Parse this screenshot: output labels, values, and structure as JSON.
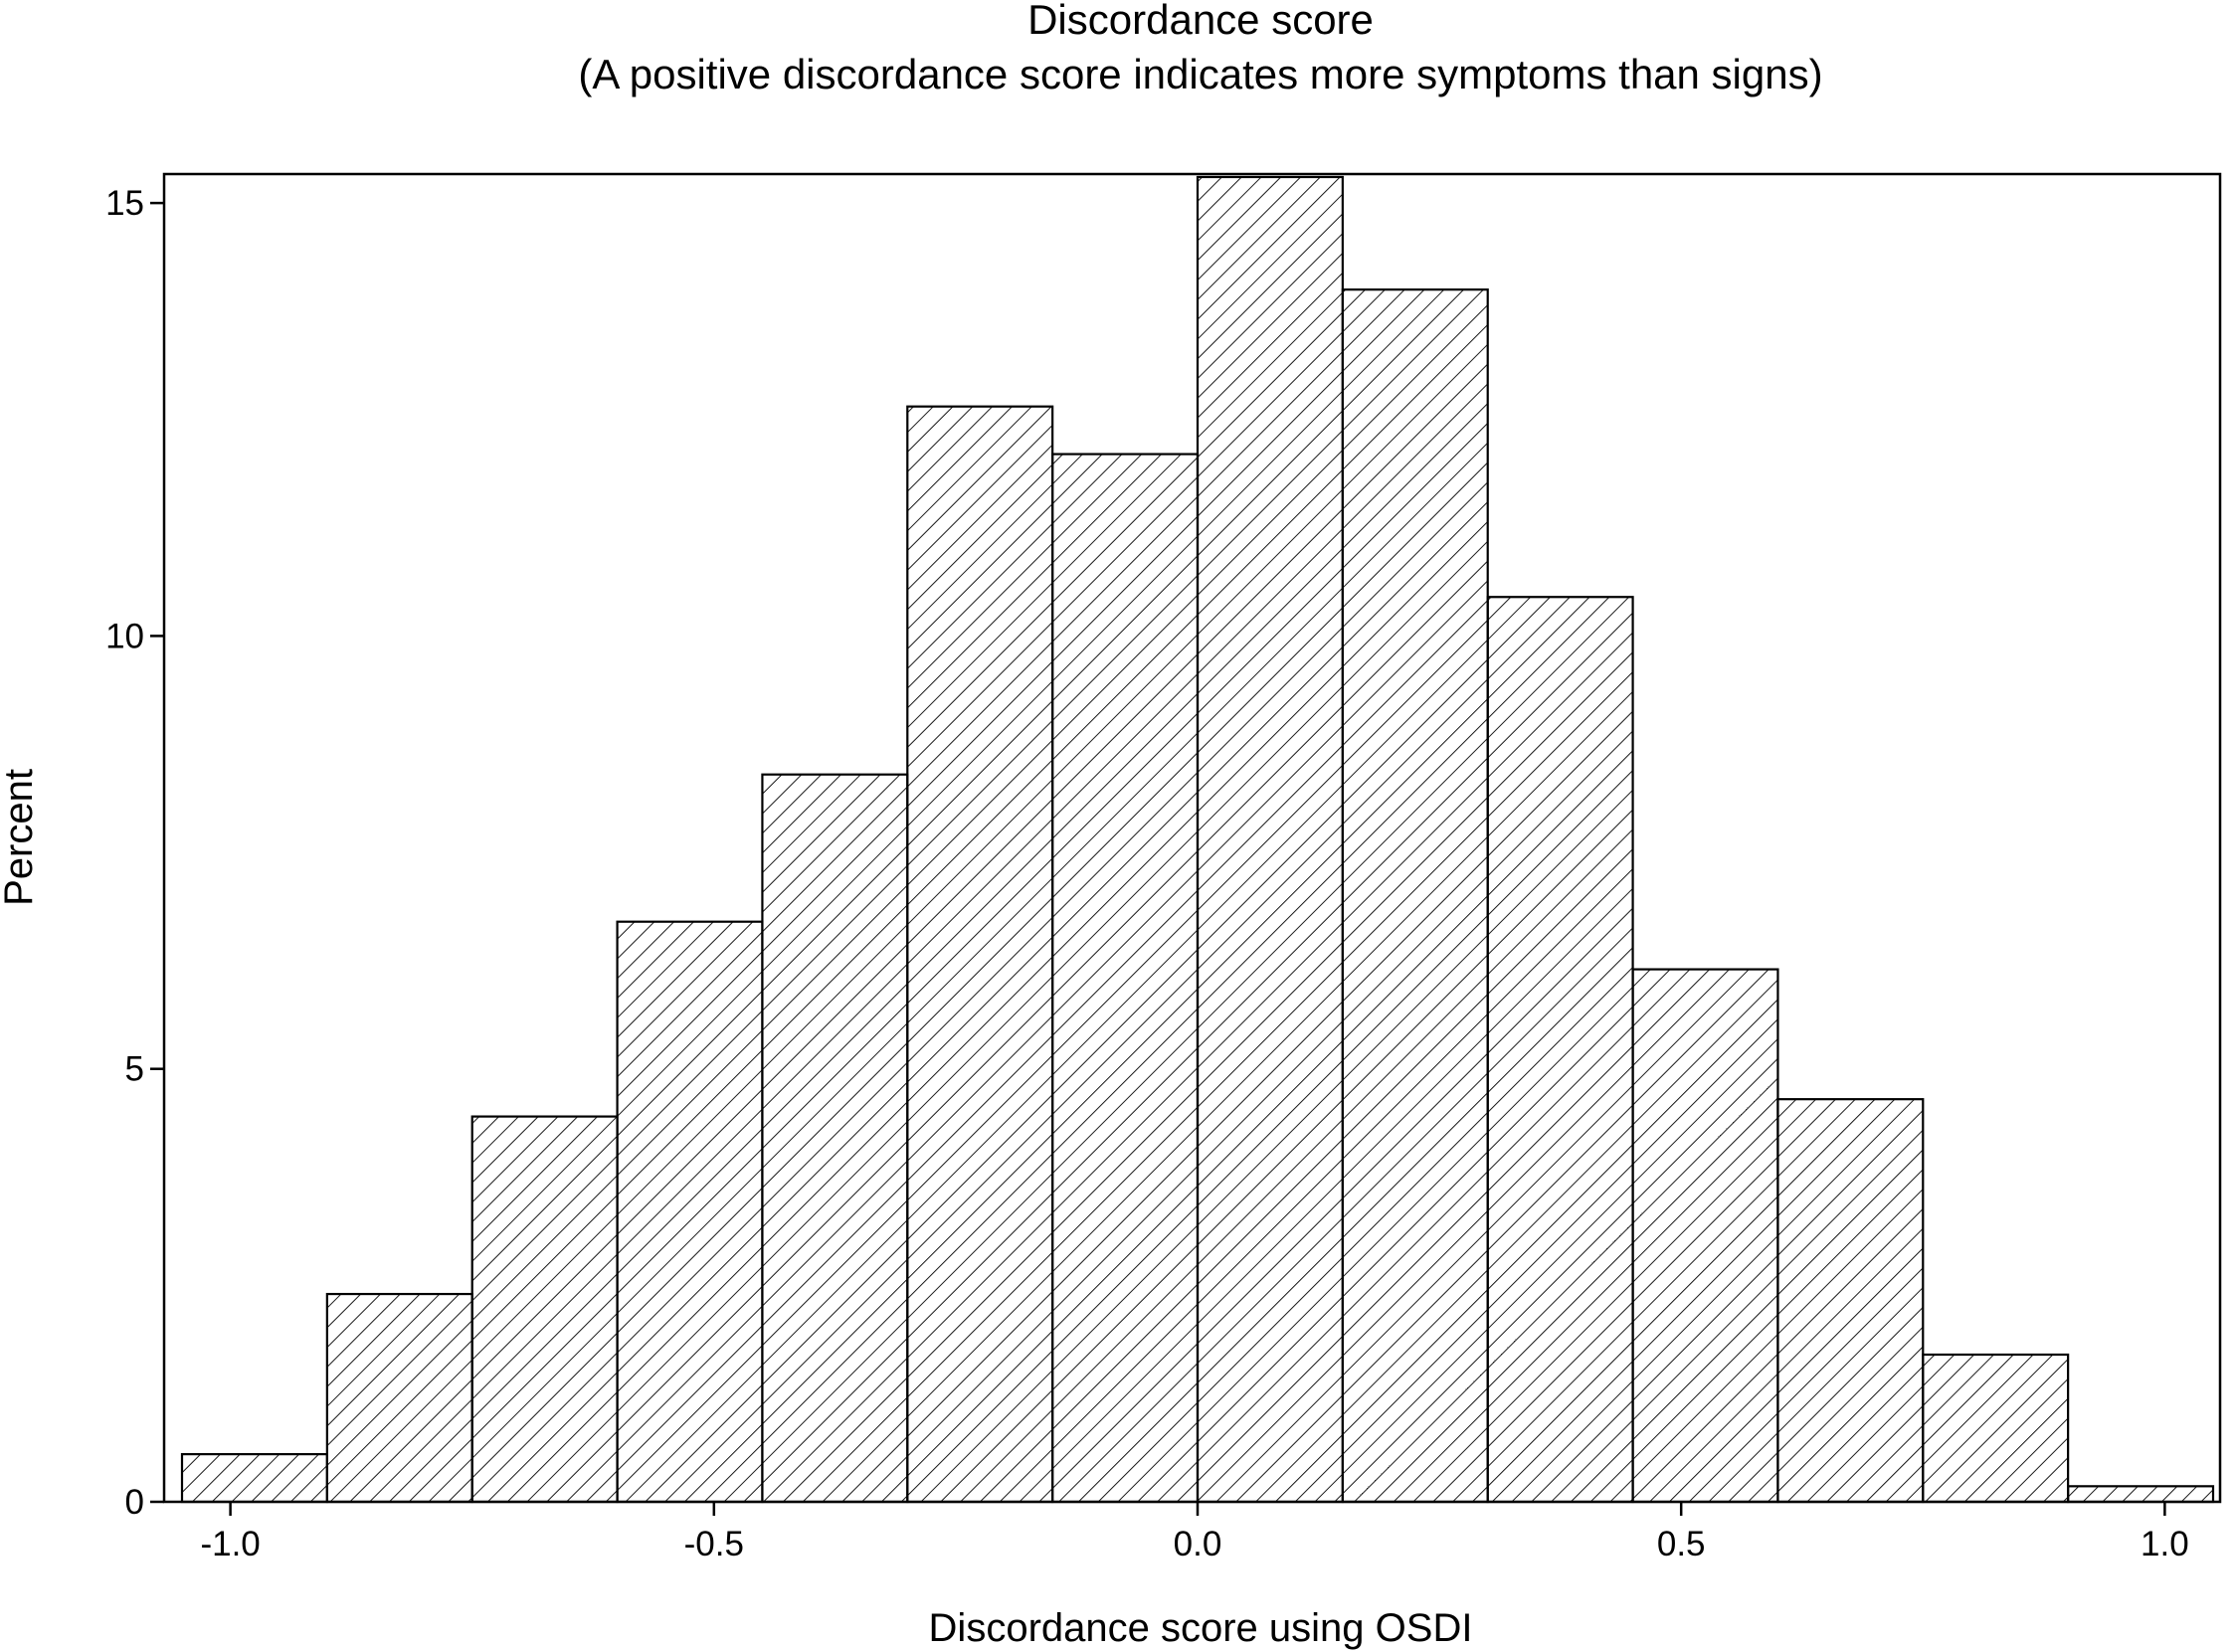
{
  "chart_data": {
    "type": "bar",
    "title": "Discordance score",
    "subtitle": "(A positive discordance score indicates more symptoms than signs)",
    "xlabel": "Discordance score using OSDI",
    "ylabel": "Percent",
    "xlim": [
      -1.05,
      1.05
    ],
    "ylim": [
      0,
      15.3
    ],
    "xticks": [
      -1.0,
      -0.5,
      0.0,
      0.5,
      1.0
    ],
    "xtick_labels": [
      "-1.0",
      "-0.5",
      "0.0",
      "0.5",
      "1.0"
    ],
    "yticks": [
      0,
      5,
      10,
      15
    ],
    "ytick_labels": [
      "0",
      "5",
      "10",
      "15"
    ],
    "bin_edges": [
      -1.05,
      -0.9,
      -0.75,
      -0.6,
      -0.45,
      -0.3,
      -0.15,
      0.0,
      0.15,
      0.3,
      0.45,
      0.6,
      0.75,
      0.9,
      1.05
    ],
    "values": [
      0.55,
      2.4,
      4.45,
      6.7,
      8.4,
      12.65,
      12.1,
      15.3,
      14.0,
      10.45,
      6.15,
      4.65,
      1.7,
      0.18
    ],
    "grid": false,
    "legend": "none",
    "fill_pattern": "diagonal-hatch",
    "colors": {
      "bar_edge": "#000000",
      "hatch": "#000000",
      "background": "#ffffff"
    }
  }
}
